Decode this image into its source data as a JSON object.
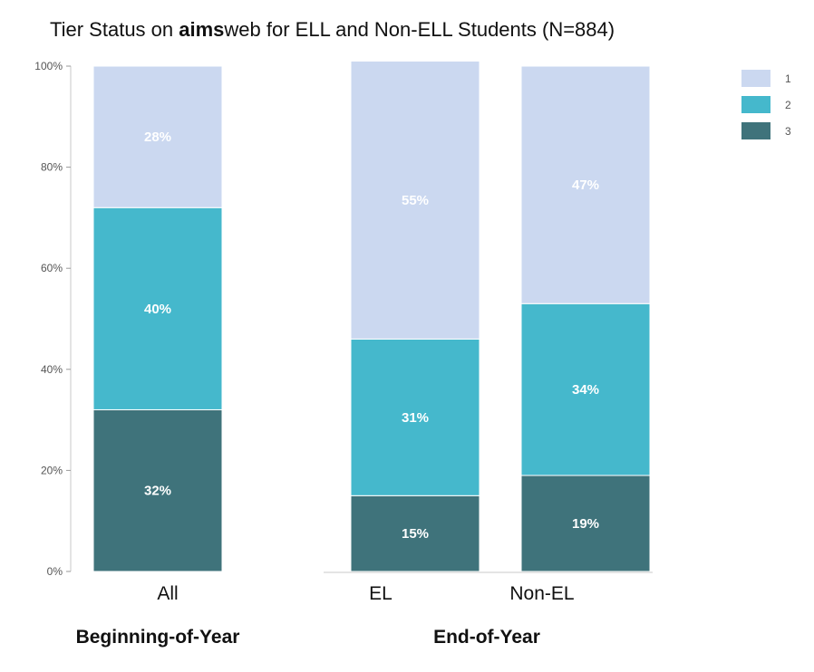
{
  "chart_data": {
    "type": "bar",
    "stacked": true,
    "title": {
      "prefix": "Tier Status on ",
      "bold": "aims",
      "suffix": "web for ELL and Non-ELL Students (N=884)"
    },
    "categories": [
      "All",
      "EL",
      "Non-EL"
    ],
    "groups": [
      {
        "label": "Beginning-of-Year",
        "categories": [
          "All"
        ]
      },
      {
        "label": "End-of-Year",
        "categories": [
          "EL",
          "Non-EL"
        ]
      }
    ],
    "series": [
      {
        "name": "3",
        "color": "#3f737b",
        "values": [
          32,
          15,
          19
        ],
        "labels": [
          "32%",
          "15%",
          "19%"
        ]
      },
      {
        "name": "2",
        "color": "#45b8cc",
        "values": [
          40,
          31,
          34
        ],
        "labels": [
          "40%",
          "31%",
          "34%"
        ]
      },
      {
        "name": "1",
        "color": "#cbd8f0",
        "values": [
          28,
          55,
          47
        ],
        "labels": [
          "28%",
          "55%",
          "47%"
        ]
      }
    ],
    "y_ticks": [
      0,
      20,
      40,
      60,
      80,
      100
    ],
    "y_tick_labels": [
      "0%",
      "20%",
      "40%",
      "60%",
      "80%",
      "100%"
    ],
    "ylim": [
      0,
      100
    ],
    "legend": {
      "position": "top-right",
      "items": [
        {
          "name": "1",
          "color": "#cbd8f0"
        },
        {
          "name": "2",
          "color": "#45b8cc"
        },
        {
          "name": "3",
          "color": "#3f737b"
        }
      ]
    },
    "grid": false
  }
}
